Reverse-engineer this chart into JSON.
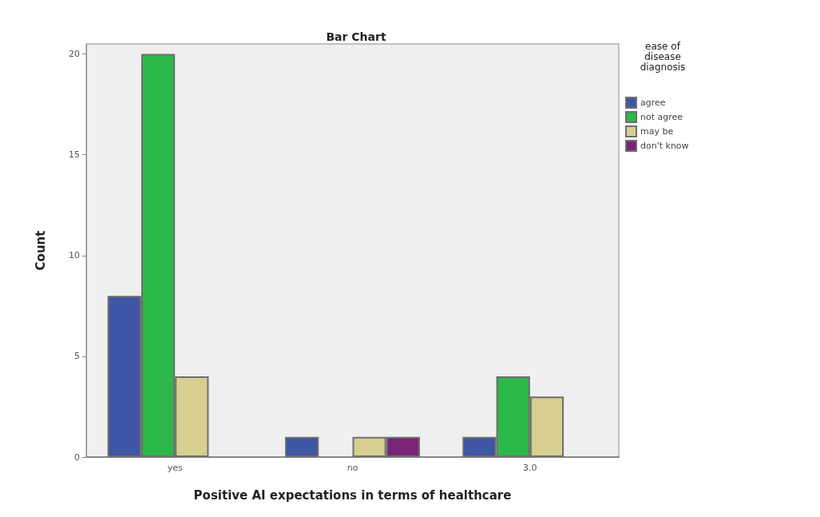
{
  "chart_data": {
    "type": "bar",
    "title": "Bar Chart",
    "xlabel": "Positive AI expectations in terms of healthcare",
    "ylabel": "Count",
    "legend_title": "ease of\ndisease\ndiagnosis",
    "categories": [
      "yes",
      "no",
      "3.0"
    ],
    "series": [
      {
        "name": "agree",
        "color": "#3f55a5",
        "values": [
          8,
          1,
          1
        ]
      },
      {
        "name": "not agree",
        "color": "#2db84a",
        "values": [
          20,
          null,
          4
        ]
      },
      {
        "name": "may be",
        "color": "#d6cf8f",
        "values": [
          4,
          1,
          3
        ]
      },
      {
        "name": "don't know",
        "color": "#7b2377",
        "values": [
          null,
          1,
          null
        ]
      }
    ],
    "ylim": [
      0,
      20.5
    ],
    "yticks": [
      0,
      5,
      10,
      15,
      20
    ],
    "grid": false,
    "legend": "top right"
  }
}
